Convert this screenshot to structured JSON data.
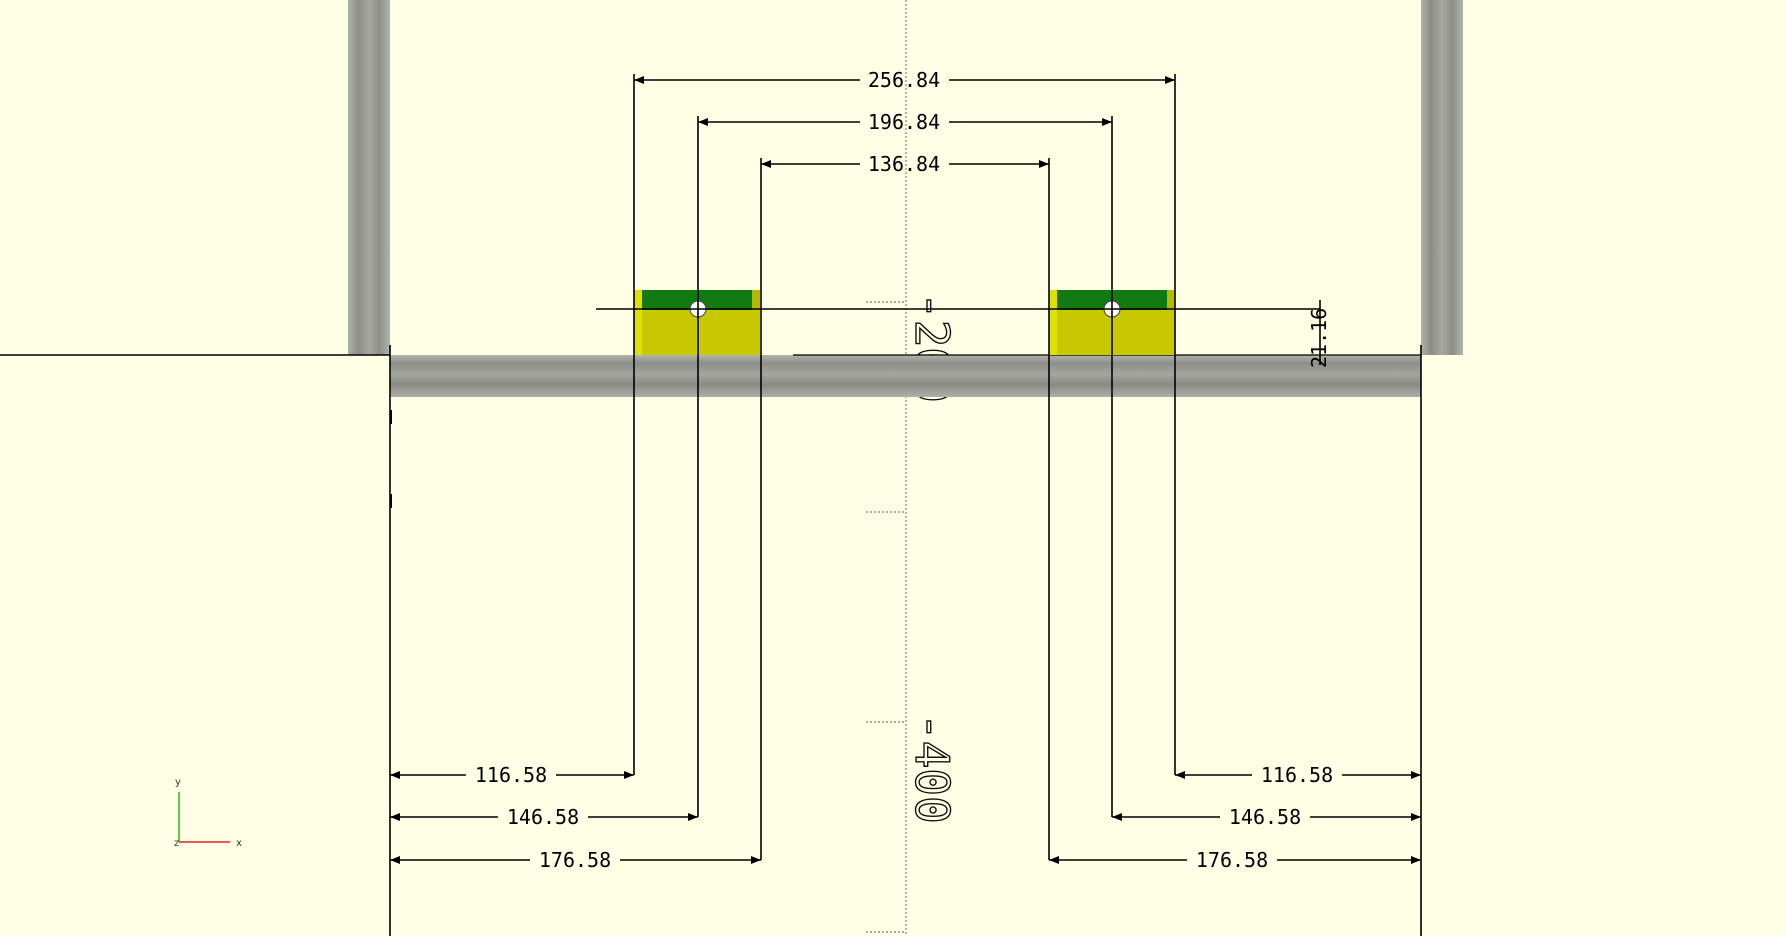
{
  "colors": {
    "background": "#ffffe5",
    "rail_gray": "#9a9a94",
    "block_yellow": "#c8c800",
    "block_green": "#127a12",
    "gizmo_x": "#e02020",
    "gizmo_y": "#20c020"
  },
  "dimensions": {
    "top": [
      "256.84",
      "196.84",
      "136.84"
    ],
    "bottom_left": [
      "116.58",
      "146.58",
      "176.58"
    ],
    "bottom_right": [
      "116.58",
      "146.58",
      "176.58"
    ],
    "side": "21.16"
  },
  "axis_labels": [
    "-200",
    "-400"
  ],
  "axes_gizmo": {
    "x": "x",
    "y": "y",
    "z": "z"
  }
}
